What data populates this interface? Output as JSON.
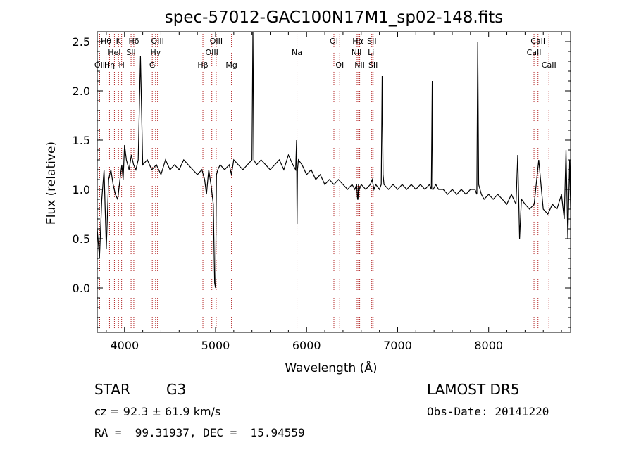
{
  "chart_data": {
    "type": "line",
    "title": "spec-57012-GAC100N17M1_sp02-148.fits",
    "xlabel": "Wavelength (Å)",
    "ylabel": "Flux (relative)",
    "xlim": [
      3700,
      8900
    ],
    "ylim": [
      -0.45,
      2.6
    ],
    "x_ticks": [
      "4000",
      "5000",
      "6000",
      "7000",
      "8000"
    ],
    "y_ticks": [
      "0.0",
      "0.5",
      "1.0",
      "1.5",
      "2.0",
      "2.5"
    ],
    "grid": false,
    "line_color": "#000000",
    "marker_color": "#b22222",
    "series": [
      {
        "x": [
          3700,
          3725,
          3750,
          3775,
          3800,
          3825,
          3850,
          3875,
          3900,
          3925,
          3950,
          3970,
          3985,
          4000,
          4020,
          4050,
          4075,
          4100,
          4125,
          4150,
          4175,
          4200,
          4250,
          4300,
          4350,
          4400,
          4450,
          4500,
          4550,
          4600,
          4650,
          4700,
          4750,
          4800,
          4850,
          4880,
          4900,
          4925,
          4950,
          4975,
          4990,
          5000,
          5010,
          5025,
          5050,
          5100,
          5150,
          5175,
          5200,
          5250,
          5300,
          5350,
          5400,
          5410,
          5420,
          5450,
          5500,
          5550,
          5600,
          5650,
          5700,
          5750,
          5800,
          5850,
          5880,
          5890,
          5895,
          5900,
          5910,
          5950,
          6000,
          6050,
          6100,
          6150,
          6200,
          6250,
          6300,
          6350,
          6400,
          6450,
          6500,
          6530,
          6550,
          6560,
          6565,
          6570,
          6580,
          6600,
          6650,
          6700,
          6720,
          6740,
          6760,
          6800,
          6820,
          6830,
          6840,
          6850,
          6900,
          6950,
          7000,
          7050,
          7100,
          7150,
          7200,
          7250,
          7300,
          7350,
          7370,
          7380,
          7385,
          7390,
          7420,
          7450,
          7500,
          7550,
          7600,
          7650,
          7700,
          7750,
          7800,
          7850,
          7870,
          7880,
          7890,
          7920,
          7950,
          8000,
          8050,
          8100,
          8150,
          8200,
          8250,
          8300,
          8320,
          8340,
          8360,
          8400,
          8450,
          8500,
          8550,
          8600,
          8650,
          8700,
          8750,
          8800,
          8830,
          8850,
          8870,
          8890,
          8900
        ],
        "y": [
          0.6,
          0.3,
          0.9,
          1.2,
          0.4,
          1.1,
          1.2,
          1.05,
          0.95,
          0.9,
          1.1,
          1.25,
          1.1,
          1.45,
          1.3,
          1.2,
          1.35,
          1.25,
          1.2,
          1.3,
          2.35,
          1.25,
          1.3,
          1.2,
          1.25,
          1.15,
          1.3,
          1.2,
          1.25,
          1.2,
          1.3,
          1.25,
          1.2,
          1.15,
          1.2,
          1.1,
          0.95,
          1.2,
          1.05,
          0.85,
          0.05,
          0.0,
          1.15,
          1.2,
          1.25,
          1.2,
          1.25,
          1.15,
          1.3,
          1.25,
          1.2,
          1.25,
          1.3,
          2.6,
          1.3,
          1.25,
          1.3,
          1.25,
          1.2,
          1.25,
          1.3,
          1.2,
          1.35,
          1.25,
          1.2,
          1.5,
          0.65,
          1.2,
          1.3,
          1.25,
          1.15,
          1.2,
          1.1,
          1.15,
          1.05,
          1.1,
          1.05,
          1.1,
          1.05,
          1.0,
          1.05,
          1.0,
          1.05,
          0.9,
          0.9,
          1.05,
          1.0,
          1.05,
          1.0,
          1.05,
          1.1,
          1.0,
          1.05,
          1.0,
          1.05,
          2.15,
          1.15,
          1.05,
          1.0,
          1.05,
          1.0,
          1.05,
          1.0,
          1.05,
          1.0,
          1.05,
          1.0,
          1.05,
          1.0,
          2.1,
          1.0,
          1.0,
          1.05,
          1.0,
          1.0,
          0.95,
          1.0,
          0.95,
          1.0,
          0.95,
          1.0,
          1.0,
          0.95,
          2.5,
          1.05,
          0.95,
          0.9,
          0.95,
          0.9,
          0.95,
          0.9,
          0.85,
          0.95,
          0.85,
          1.35,
          0.5,
          0.9,
          0.85,
          0.8,
          0.85,
          1.3,
          0.8,
          0.75,
          0.85,
          0.8,
          0.95,
          0.7,
          1.4,
          0.5,
          1.3,
          0.8
        ]
      }
    ],
    "line_markers": [
      {
        "label": "OII",
        "x": 3727,
        "row": 3
      },
      {
        "label": "Hθ",
        "x": 3797,
        "row": 1
      },
      {
        "label": "Hη",
        "x": 3835,
        "row": 3
      },
      {
        "label": "HeI",
        "x": 3889,
        "row": 2
      },
      {
        "label": "K",
        "x": 3934,
        "row": 1
      },
      {
        "label": "H",
        "x": 3968,
        "row": 3
      },
      {
        "label": "SII",
        "x": 4072,
        "row": 2
      },
      {
        "label": "Hδ",
        "x": 4102,
        "row": 1
      },
      {
        "label": "G",
        "x": 4305,
        "row": 3
      },
      {
        "label": "Hγ",
        "x": 4341,
        "row": 2
      },
      {
        "label": "OIII",
        "x": 4363,
        "row": 1
      },
      {
        "label": "Hβ",
        "x": 4861,
        "row": 3
      },
      {
        "label": "OIII",
        "x": 4959,
        "row": 2
      },
      {
        "label": "OIII",
        "x": 5007,
        "row": 1
      },
      {
        "label": "Mg",
        "x": 5175,
        "row": 3
      },
      {
        "label": "Na",
        "x": 5894,
        "row": 2
      },
      {
        "label": "OI",
        "x": 6300,
        "row": 1
      },
      {
        "label": "OI",
        "x": 6364,
        "row": 3
      },
      {
        "label": "NII",
        "x": 6548,
        "row": 2
      },
      {
        "label": "Hα",
        "x": 6563,
        "row": 1
      },
      {
        "label": "NII",
        "x": 6583,
        "row": 3
      },
      {
        "label": "Li",
        "x": 6708,
        "row": 2
      },
      {
        "label": "SII",
        "x": 6717,
        "row": 1
      },
      {
        "label": "SII",
        "x": 6731,
        "row": 3
      },
      {
        "label": "CaII",
        "x": 8498,
        "row": 2
      },
      {
        "label": "CaII",
        "x": 8542,
        "row": 1
      },
      {
        "label": "CaII",
        "x": 8662,
        "row": 3
      }
    ]
  },
  "info": {
    "object_type": "STAR",
    "subclass": "G3",
    "survey": "LAMOST DR5",
    "redshift": "cz = 92.3 ± 61.9 km/s",
    "obs_date": "Obs-Date: 20141220",
    "coords": "RA =  99.31937, DEC =  15.94559"
  }
}
